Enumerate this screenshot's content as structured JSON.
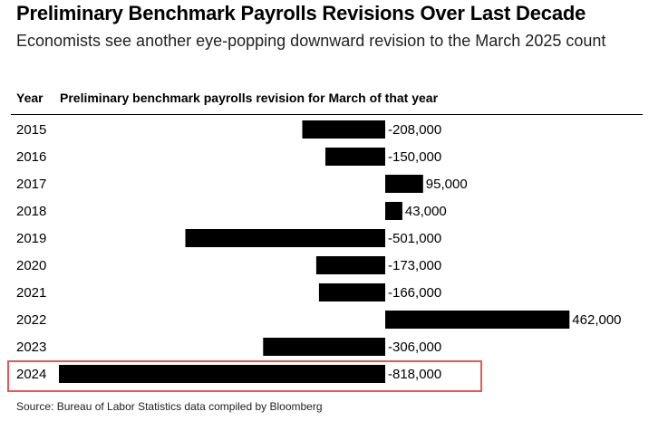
{
  "title": "Preliminary Benchmark Payrolls Revisions Over Last Decade",
  "subtitle": "Economists see another eye-popping downward revision to the March 2025 count",
  "columns": {
    "year": "Year",
    "revision": "Preliminary benchmark payrolls revision for March of that year"
  },
  "source": "Source: Bureau of Labor Statistics data compiled by Bloomberg",
  "colors": {
    "bar": "#000000",
    "highlight": "#e05a5a"
  },
  "highlighted_category": "2024",
  "chart_data": {
    "type": "bar",
    "orientation": "horizontal",
    "title": "Preliminary Benchmark Payrolls Revisions Over Last Decade",
    "categories": [
      "2015",
      "2016",
      "2017",
      "2018",
      "2019",
      "2020",
      "2021",
      "2022",
      "2023",
      "2024"
    ],
    "values": [
      -208000,
      -150000,
      95000,
      43000,
      -501000,
      -173000,
      -166000,
      462000,
      -306000,
      -818000
    ],
    "labels": [
      "-208,000",
      "-150,000",
      "95,000",
      "43,000",
      "-501,000",
      "-173,000",
      "-166,000",
      "462,000",
      "-306,000",
      "-818,000"
    ],
    "grid": false,
    "legend": "none"
  }
}
